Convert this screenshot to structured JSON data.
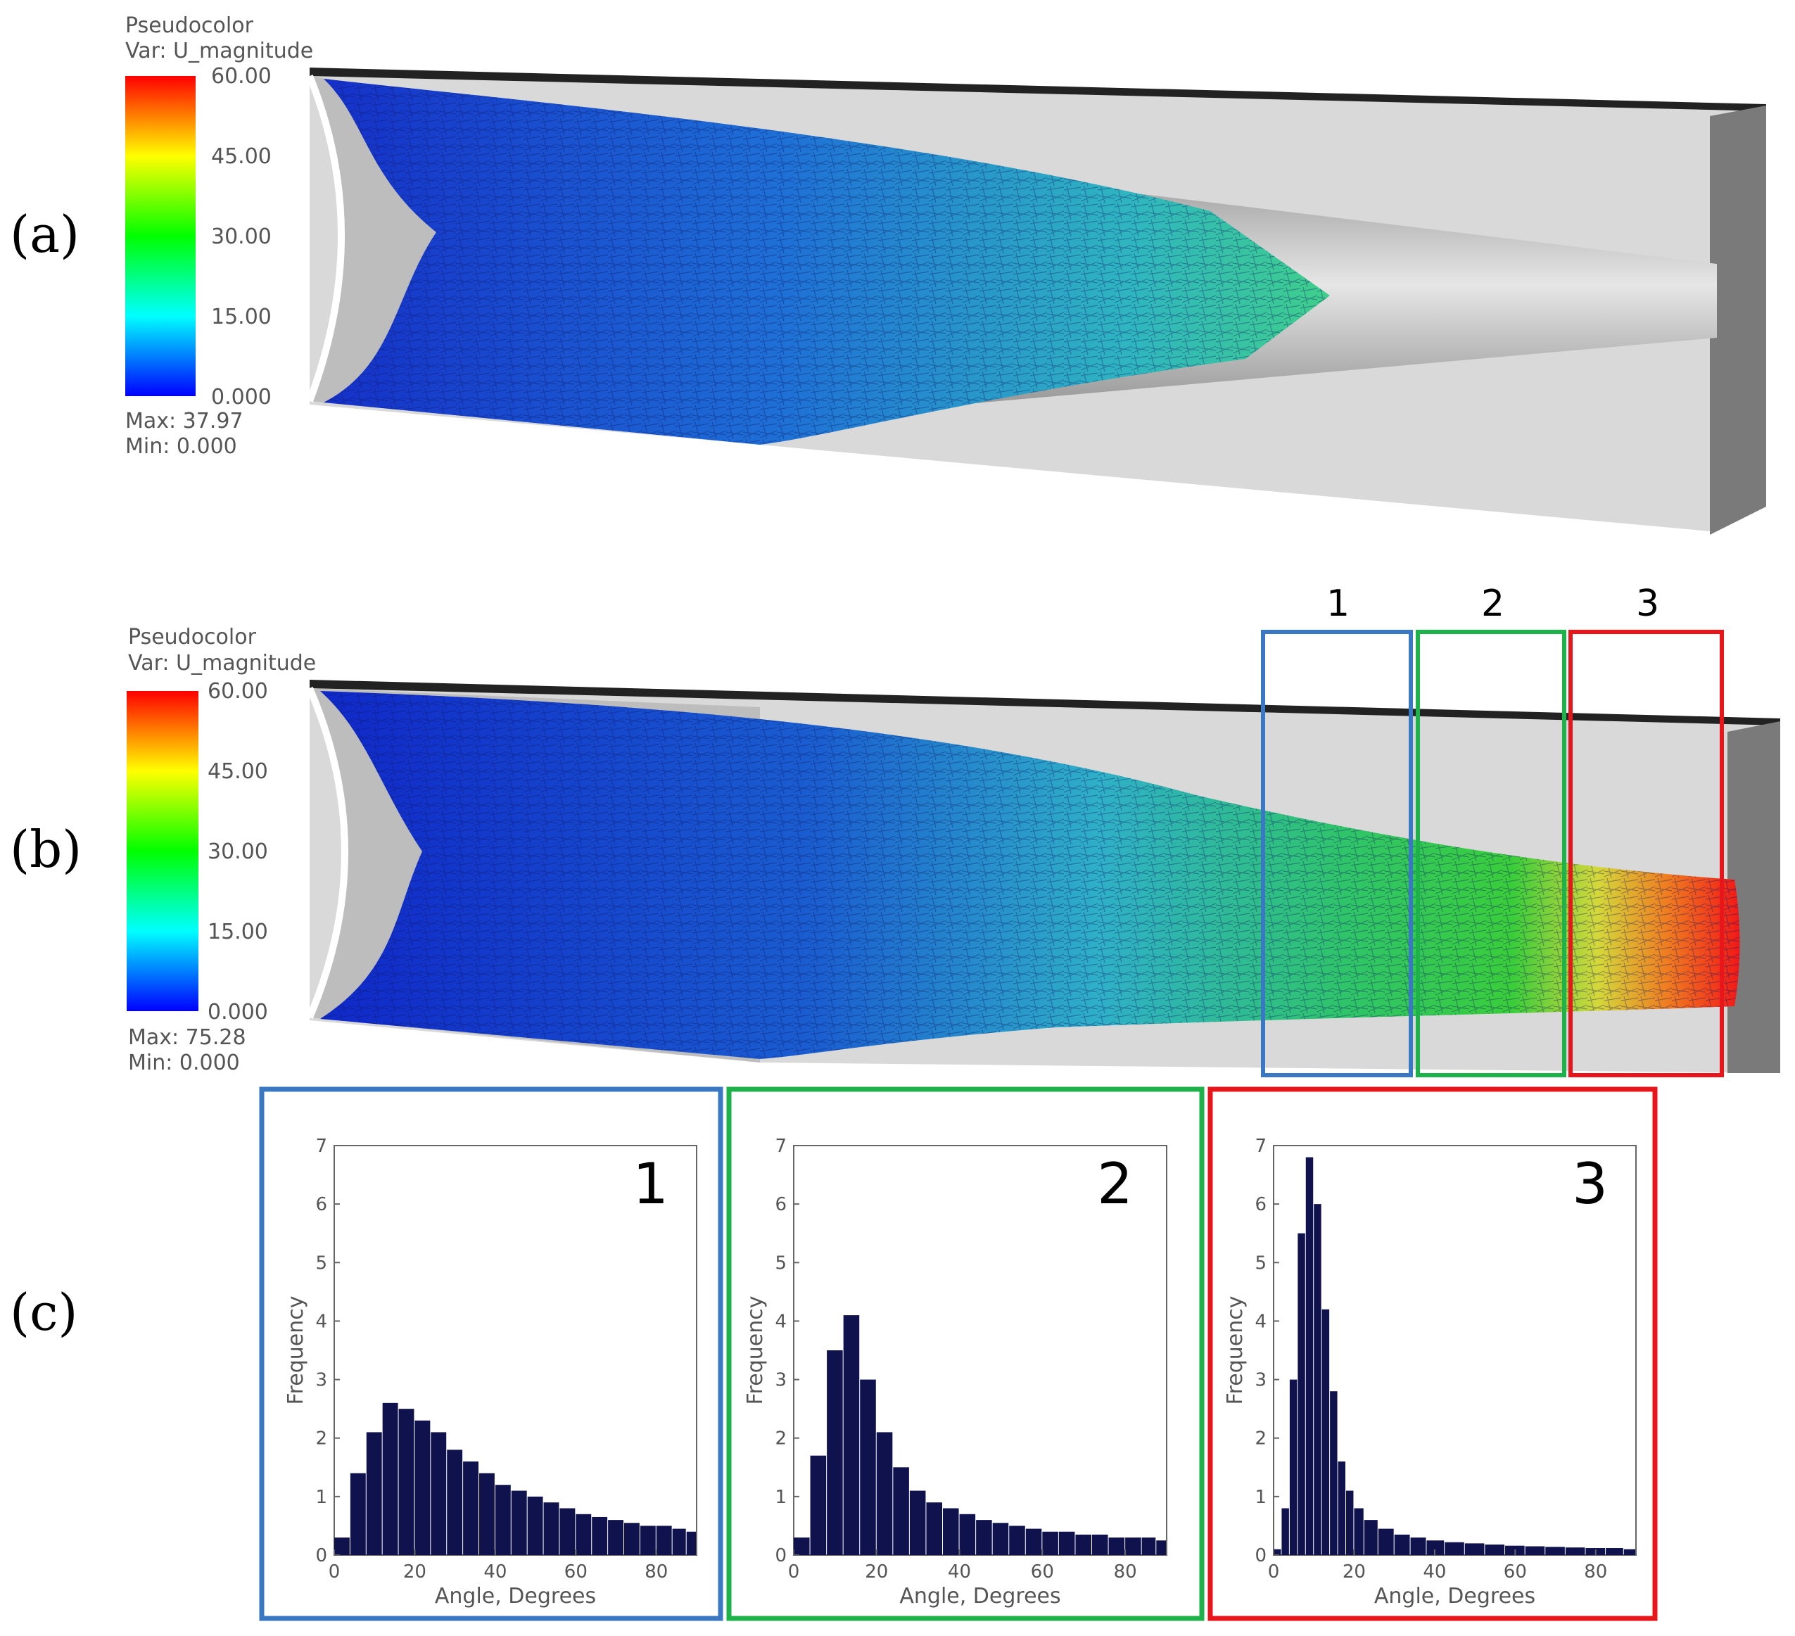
{
  "panels": {
    "a": {
      "label": "(a)",
      "legend": {
        "title1": "Pseudocolor",
        "title2": "Var: U_magnitude",
        "ticks": [
          "60.00",
          "45.00",
          "30.00",
          "15.00",
          "0.000"
        ],
        "max": "Max:  37.97",
        "min": "Min:  0.000"
      }
    },
    "b": {
      "label": "(b)",
      "legend": {
        "title1": "Pseudocolor",
        "title2": "Var: U_magnitude",
        "ticks": [
          "60.00",
          "45.00",
          "30.00",
          "15.00",
          "0.000"
        ],
        "max": "Max:  75.28",
        "min": "Min:  0.000"
      }
    },
    "c": {
      "label": "(c)"
    }
  },
  "zones": [
    {
      "id": "1",
      "color": "#3b78c4"
    },
    {
      "id": "2",
      "color": "#1db34a"
    },
    {
      "id": "3",
      "color": "#e8161b"
    }
  ],
  "colors": {
    "bar": "#10124d",
    "colormap": [
      "#0000ff",
      "#00ffff",
      "#00ff00",
      "#ffff00",
      "#ff0000"
    ]
  },
  "chart_data": [
    {
      "type": "bar",
      "title": "1",
      "xlabel": "Angle, Degrees",
      "ylabel": "Frequency",
      "xlim": [
        0,
        90
      ],
      "ylim": [
        0,
        7
      ],
      "xticks": [
        "0",
        "20",
        "40",
        "60",
        "80"
      ],
      "yticks": [
        "0",
        "1",
        "2",
        "3",
        "4",
        "5",
        "6",
        "7"
      ],
      "x": [
        2,
        6,
        10,
        14,
        18,
        22,
        26,
        30,
        34,
        38,
        42,
        46,
        50,
        54,
        58,
        62,
        66,
        70,
        74,
        78,
        82,
        86,
        89
      ],
      "values": [
        0.3,
        1.4,
        2.1,
        2.6,
        2.5,
        2.3,
        2.1,
        1.8,
        1.6,
        1.4,
        1.2,
        1.1,
        1.0,
        0.9,
        0.8,
        0.7,
        0.65,
        0.6,
        0.55,
        0.5,
        0.5,
        0.45,
        0.4
      ]
    },
    {
      "type": "bar",
      "title": "2",
      "xlabel": "Angle, Degrees",
      "ylabel": "Frequency",
      "xlim": [
        0,
        90
      ],
      "ylim": [
        0,
        7
      ],
      "xticks": [
        "0",
        "20",
        "40",
        "60",
        "80"
      ],
      "yticks": [
        "0",
        "1",
        "2",
        "3",
        "4",
        "5",
        "6",
        "7"
      ],
      "x": [
        2,
        6,
        10,
        14,
        18,
        22,
        26,
        30,
        34,
        38,
        42,
        46,
        50,
        54,
        58,
        62,
        66,
        70,
        74,
        78,
        82,
        86,
        89
      ],
      "values": [
        0.3,
        1.7,
        3.5,
        4.1,
        3.0,
        2.1,
        1.5,
        1.1,
        0.9,
        0.8,
        0.7,
        0.6,
        0.55,
        0.5,
        0.45,
        0.4,
        0.4,
        0.35,
        0.35,
        0.3,
        0.3,
        0.3,
        0.25
      ]
    },
    {
      "type": "bar",
      "title": "3",
      "xlabel": "Angle, Degrees",
      "ylabel": "Frequency",
      "xlim": [
        0,
        90
      ],
      "ylim": [
        0,
        7
      ],
      "xticks": [
        "0",
        "20",
        "40",
        "60",
        "80"
      ],
      "yticks": [
        "0",
        "1",
        "2",
        "3",
        "4",
        "5",
        "6",
        "7"
      ],
      "x": [
        1,
        3,
        5,
        7,
        9,
        11,
        13,
        15,
        17,
        19,
        21,
        24,
        28,
        32,
        36,
        40,
        45,
        50,
        55,
        60,
        65,
        70,
        75,
        80,
        85,
        89
      ],
      "values": [
        0.1,
        0.8,
        3.0,
        5.5,
        6.8,
        6.0,
        4.2,
        2.8,
        1.6,
        1.1,
        0.8,
        0.6,
        0.45,
        0.35,
        0.3,
        0.25,
        0.22,
        0.2,
        0.18,
        0.16,
        0.15,
        0.14,
        0.13,
        0.12,
        0.12,
        0.1
      ]
    }
  ]
}
